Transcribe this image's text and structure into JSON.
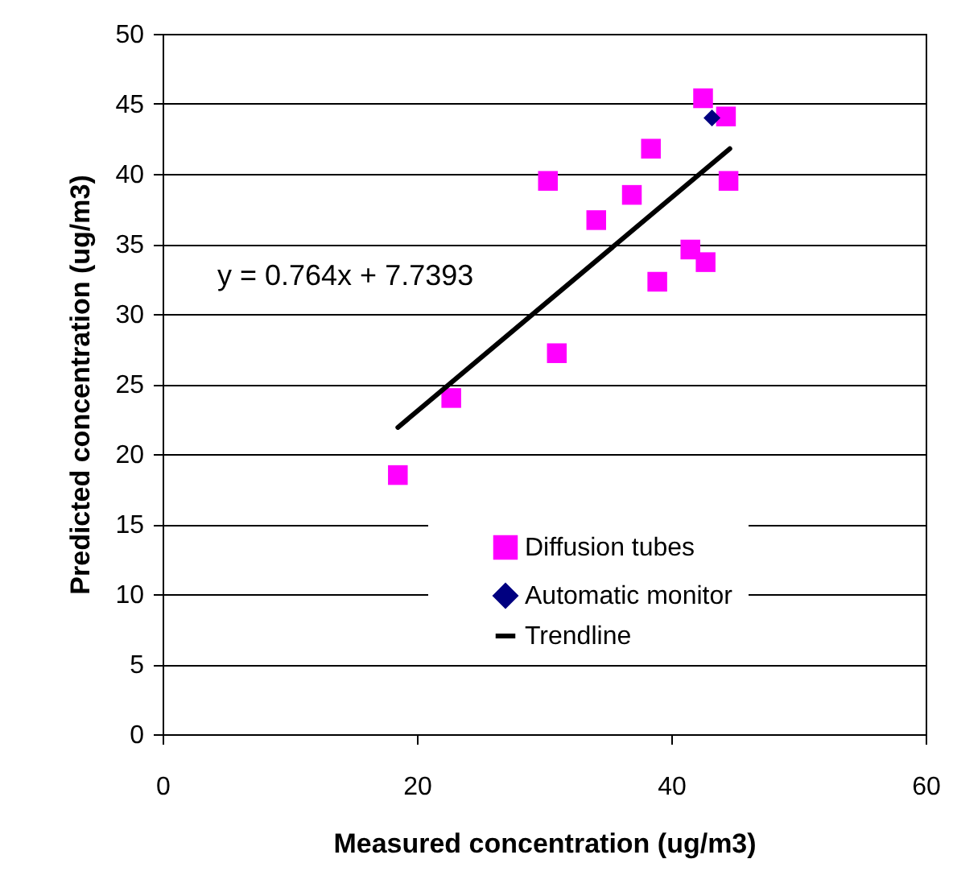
{
  "chart_data": {
    "type": "scatter",
    "xlabel": "Measured concentration (ug/m3)",
    "ylabel": "Predicted concentration (ug/m3)",
    "xlim": [
      0,
      60
    ],
    "xticks": [
      0,
      20,
      40,
      60
    ],
    "ylim": [
      0,
      50
    ],
    "yticks": [
      0,
      5,
      10,
      15,
      20,
      25,
      30,
      35,
      40,
      45,
      50
    ],
    "grid": "y",
    "legend": "bottom right",
    "annotations": [
      "y = 0.764x + 7.7393"
    ],
    "series": [
      {
        "name": "Diffusion tubes",
        "marker": "square",
        "color": "#ff00ff",
        "x": [
          18.5,
          22.7,
          31.0,
          30.3,
          34.1,
          36.9,
          38.4,
          38.9,
          41.5,
          42.7,
          42.5,
          44.3,
          44.5
        ],
        "values": [
          18.5,
          24.0,
          27.2,
          39.5,
          36.7,
          38.5,
          41.8,
          32.3,
          34.6,
          33.7,
          45.4,
          44.1,
          39.5
        ]
      },
      {
        "name": "Automatic monitor",
        "marker": "diamond",
        "color": "#000080",
        "x": [
          43.2
        ],
        "values": [
          44.0
        ]
      },
      {
        "name": "Trendline",
        "type": "line",
        "marker": "none",
        "color": "#000000",
        "x": [
          18.5,
          44.6
        ],
        "values": [
          21.9,
          41.8
        ]
      }
    ]
  }
}
